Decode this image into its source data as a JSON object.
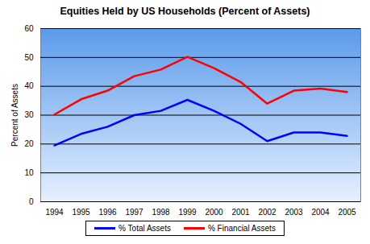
{
  "chart_data": {
    "type": "line",
    "title": "Equities Held by US Households (Percent of Assets)",
    "y_label": "Percent of Assets",
    "categories": [
      "1994",
      "1995",
      "1996",
      "1997",
      "1998",
      "1999",
      "2000",
      "2001",
      "2002",
      "2003",
      "2004",
      "2005"
    ],
    "series": [
      {
        "name": "% Total Assets",
        "color": "#0000ff",
        "values": [
          19.5,
          23.5,
          26,
          30,
          31.5,
          35.3,
          31.5,
          27,
          21,
          24,
          24,
          22.8
        ]
      },
      {
        "name": "% Financial Assets",
        "color": "#ff0000",
        "values": [
          30.2,
          35.5,
          38.5,
          43.5,
          45.8,
          50.2,
          46.3,
          41.5,
          34,
          38.5,
          39.2,
          38
        ]
      }
    ],
    "ylim": [
      0,
      60
    ],
    "yticks": [
      0,
      10,
      20,
      30,
      40,
      50,
      60
    ],
    "grid": true,
    "legend": "bottom"
  }
}
